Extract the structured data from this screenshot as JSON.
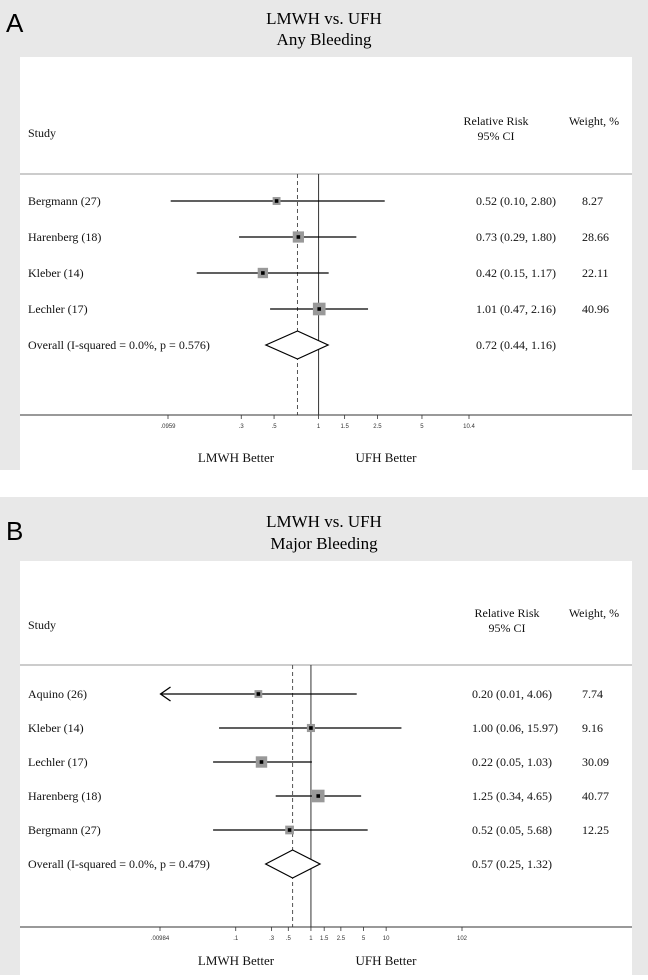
{
  "panels": [
    {
      "letter": "A",
      "title": "LMWH vs. UFH",
      "subtitle": "Any Bleeding",
      "col_study": "Study",
      "col_rr_1": "Relative Risk",
      "col_rr_2": "95% CI",
      "col_weight": "Weight, %",
      "left_label": "LMWH Better",
      "right_label": "UFH Better",
      "ticks": [
        {
          "label": ".0959",
          "value": 0.0959
        },
        {
          "label": ".3",
          "value": 0.3
        },
        {
          "label": ".5",
          "value": 0.5
        },
        {
          "label": "1",
          "value": 1
        },
        {
          "label": "1.5",
          "value": 1.5
        },
        {
          "label": "2.5",
          "value": 2.5
        },
        {
          "label": "5",
          "value": 5
        },
        {
          "label": "10.4",
          "value": 10.4
        }
      ]
    },
    {
      "letter": "B",
      "title": "LMWH vs. UFH",
      "subtitle": "Major Bleeding",
      "col_study": "Study",
      "col_rr_1": "Relative Risk",
      "col_rr_2": "95% CI",
      "col_weight": "Weight, %",
      "left_label": "LMWH Better",
      "right_label": "UFH Better",
      "ticks": [
        {
          "label": ".00984",
          "value": 0.00984
        },
        {
          "label": ".1",
          "value": 0.1
        },
        {
          "label": ".3",
          "value": 0.3
        },
        {
          "label": ".5",
          "value": 0.5
        },
        {
          "label": "1",
          "value": 1
        },
        {
          "label": "1.5",
          "value": 1.5
        },
        {
          "label": "2.5",
          "value": 2.5
        },
        {
          "label": "5",
          "value": 5
        },
        {
          "label": "10",
          "value": 10
        },
        {
          "label": "102",
          "value": 102
        }
      ]
    }
  ],
  "chart_data": [
    {
      "type": "forest",
      "title": "LMWH vs. UFH",
      "subtitle": "Any Bleeding",
      "x_scale": "log",
      "xlim": [
        0.0959,
        10.4
      ],
      "null_line": 1,
      "overall_line": 0.72,
      "studies": [
        {
          "name": "Bergmann (27)",
          "rr": 0.52,
          "lo": 0.1,
          "hi": 2.8,
          "ci_text": "0.52 (0.10, 2.80)",
          "weight": "8.27"
        },
        {
          "name": "Harenberg (18)",
          "rr": 0.73,
          "lo": 0.29,
          "hi": 1.8,
          "ci_text": "0.73 (0.29, 1.80)",
          "weight": "28.66"
        },
        {
          "name": "Kleber (14)",
          "rr": 0.42,
          "lo": 0.15,
          "hi": 1.17,
          "ci_text": "0.42 (0.15, 1.17)",
          "weight": "22.11"
        },
        {
          "name": "Lechler (17)",
          "rr": 1.01,
          "lo": 0.47,
          "hi": 2.16,
          "ci_text": "1.01 (0.47, 2.16)",
          "weight": "40.96"
        }
      ],
      "overall": {
        "name": "Overall  (I-squared = 0.0%, p = 0.576)",
        "rr": 0.72,
        "lo": 0.44,
        "hi": 1.16,
        "ci_text": "0.72 (0.44, 1.16)"
      }
    },
    {
      "type": "forest",
      "title": "LMWH vs. UFH",
      "subtitle": "Major Bleeding",
      "x_scale": "log",
      "xlim": [
        0.00984,
        102
      ],
      "null_line": 1,
      "overall_line": 0.57,
      "studies": [
        {
          "name": "Aquino (26)",
          "rr": 0.2,
          "lo": 0.01,
          "hi": 4.06,
          "ci_text": "0.20 (0.01, 4.06)",
          "weight": "7.74",
          "arrow_left": true
        },
        {
          "name": "Kleber (14)",
          "rr": 1.0,
          "lo": 0.06,
          "hi": 15.97,
          "ci_text": "1.00 (0.06, 15.97)",
          "weight": "9.16"
        },
        {
          "name": "Lechler (17)",
          "rr": 0.22,
          "lo": 0.05,
          "hi": 1.03,
          "ci_text": "0.22 (0.05, 1.03)",
          "weight": "30.09"
        },
        {
          "name": "Harenberg (18)",
          "rr": 1.25,
          "lo": 0.34,
          "hi": 4.65,
          "ci_text": "1.25 (0.34, 4.65)",
          "weight": "40.77"
        },
        {
          "name": "Bergmann (27)",
          "rr": 0.52,
          "lo": 0.05,
          "hi": 5.68,
          "ci_text": "0.52 (0.05, 5.68)",
          "weight": "12.25"
        }
      ],
      "overall": {
        "name": "Overall  (I-squared = 0.0%, p = 0.479)",
        "rr": 0.57,
        "lo": 0.25,
        "hi": 1.32,
        "ci_text": "0.57 (0.25, 1.32)"
      }
    }
  ]
}
